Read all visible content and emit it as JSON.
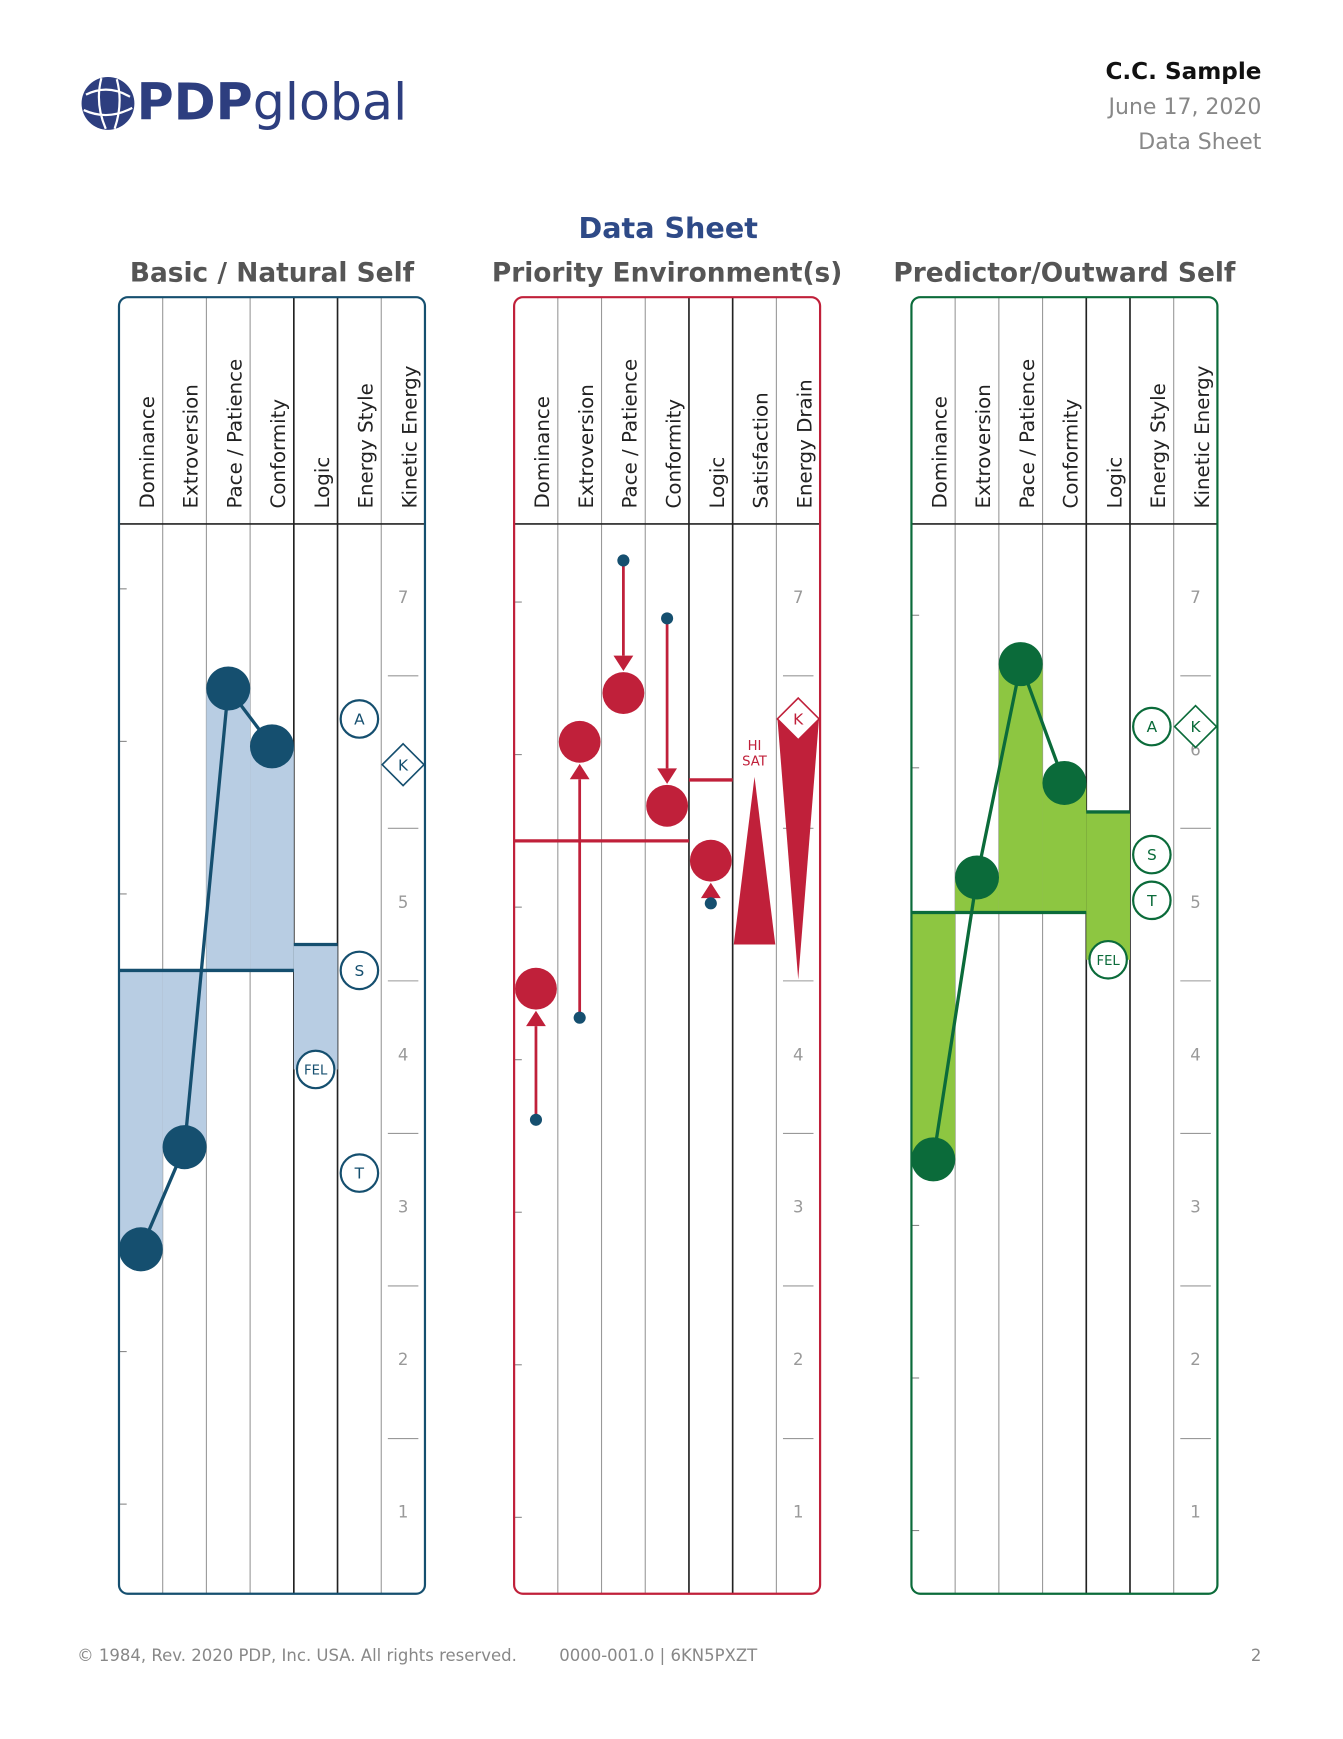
{
  "header": {
    "logo": [
      "PDP",
      "global"
    ],
    "name": "C.C. Sample",
    "date": "June 17, 2020",
    "doc": "Data Sheet"
  },
  "title": "Data Sheet",
  "panels": [
    {
      "kind": "self",
      "title": "Basic / Natural Self",
      "color": "#154f6f",
      "fill": "#b8cde3",
      "columns": [
        "Dominance",
        "Extroversion",
        "Pace / Patience",
        "Conformity",
        "Logic",
        "Energy Style",
        "Kinetic Energy"
      ],
      "values": [
        2.73,
        3.4,
        6.41,
        6.03
      ],
      "baseline": 4.56,
      "logic": 4.73,
      "logic_marker": {
        "label": "FEL",
        "value": 3.91
      },
      "energy_style": [
        {
          "label": "A",
          "value": 6.21
        },
        {
          "label": "S",
          "value": 4.56
        },
        {
          "label": "T",
          "value": 3.23
        }
      ],
      "kinetic": {
        "label": "K",
        "value": 5.91
      },
      "ylim": [
        0.47,
        7.49
      ],
      "yticks": [
        7,
        5,
        4,
        3,
        2,
        1
      ]
    },
    {
      "kind": "environment",
      "title": "Priority Environment(s)",
      "color": "#c0203a",
      "from_color": "#154f6f",
      "columns": [
        "Dominance",
        "Extroversion",
        "Pace / Patience",
        "Conformity",
        "Logic",
        "Satisfaction",
        "Energy Drain"
      ],
      "values": [
        4.44,
        6.06,
        6.38,
        5.64,
        5.28
      ],
      "from": [
        3.58,
        4.25,
        7.25,
        6.87,
        5.0
      ],
      "baseline": 5.41,
      "logic": 5.81,
      "satisfaction": {
        "label": [
          "HI",
          "SAT"
        ],
        "values": [
          4.73,
          5.83
        ]
      },
      "energy_drain": {
        "label": "K",
        "values": [
          6.21,
          4.5
        ]
      },
      "ylim": [
        0.47,
        7.49
      ],
      "yticks": [
        7,
        5,
        4,
        3,
        2,
        1
      ]
    },
    {
      "kind": "self",
      "title": "Predictor/Outward Self",
      "color": "#0b6b3a",
      "fill": "#8dc641",
      "columns": [
        "Dominance",
        "Extroversion",
        "Pace / Patience",
        "Conformity",
        "Logic",
        "Energy Style",
        "Kinetic Energy"
      ],
      "values": [
        3.32,
        5.17,
        6.57,
        5.79
      ],
      "baseline": 4.94,
      "logic": 5.6,
      "logic_marker": {
        "label": "FEL",
        "value": 4.63
      },
      "energy_style": [
        {
          "label": "A",
          "value": 6.16
        },
        {
          "label": "S",
          "value": 5.32
        },
        {
          "label": "T",
          "value": 5.02
        }
      ],
      "kinetic": {
        "label": "K",
        "value": 6.16
      },
      "ylim": [
        0.47,
        7.49
      ],
      "yticks": [
        7,
        6,
        5,
        4,
        3,
        2,
        1
      ]
    }
  ],
  "footer": {
    "copyright": "© 1984, Rev. 2020 PDP, Inc. USA. All rights reserved.",
    "code": "0000-001.0 | 6KN5PXZT",
    "page": "2"
  }
}
